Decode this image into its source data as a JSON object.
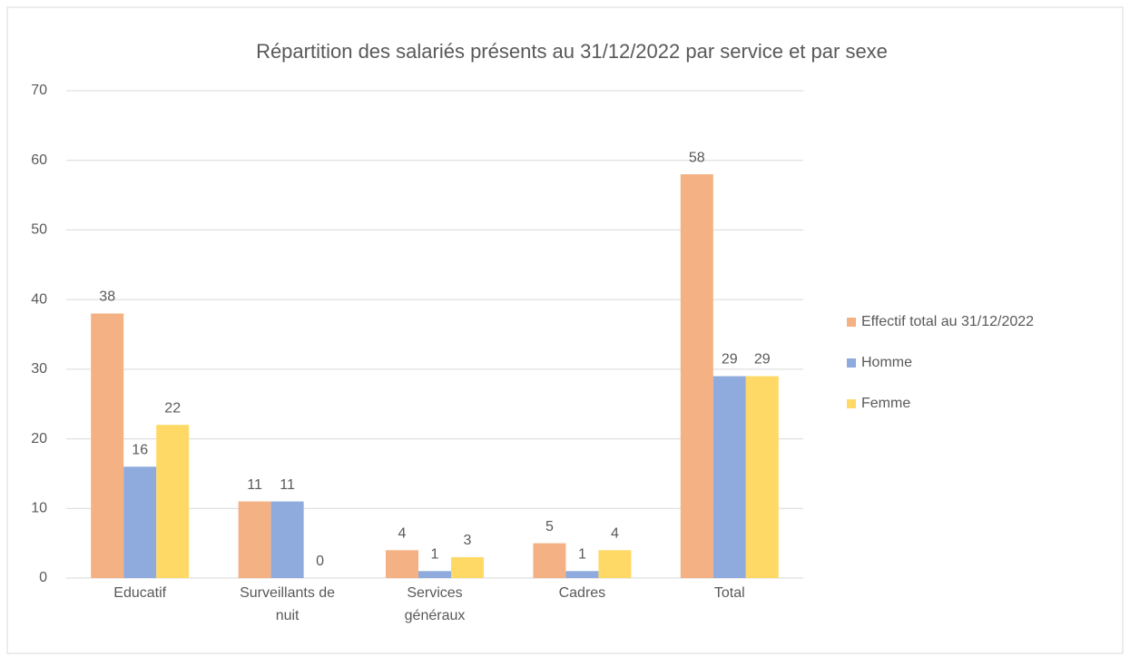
{
  "chart_data": {
    "type": "bar",
    "title": "Répartition des salariés présents au 31/12/2022 par service et par sexe",
    "categories": [
      "Educatif",
      "Surveillants de nuit",
      "Services généraux",
      "Cadres",
      "Total"
    ],
    "series": [
      {
        "name": "Effectif total au 31/12/2022",
        "color": "#f4b183",
        "values": [
          38,
          11,
          4,
          5,
          58
        ]
      },
      {
        "name": "Homme",
        "color": "#8faadc",
        "values": [
          16,
          11,
          1,
          1,
          29
        ]
      },
      {
        "name": "Femme",
        "color": "#ffd966",
        "values": [
          22,
          0,
          3,
          4,
          29
        ]
      }
    ],
    "ylim": [
      0,
      70
    ],
    "yticks": [
      0,
      10,
      20,
      30,
      40,
      50,
      60,
      70
    ],
    "grid": true,
    "legend": "right"
  }
}
